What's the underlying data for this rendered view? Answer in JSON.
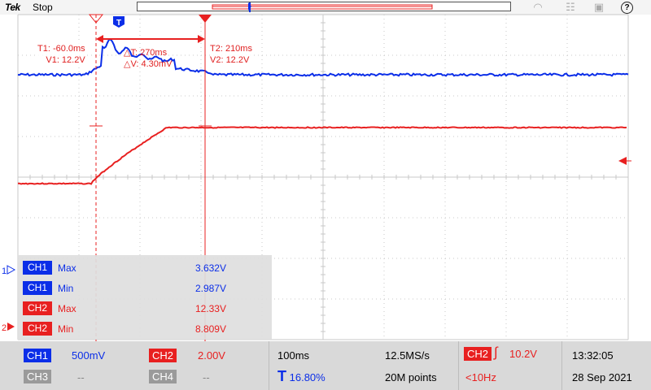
{
  "header": {
    "logo": "Tek",
    "status": "Stop"
  },
  "cursors": {
    "t1": "T1: -60.0ms",
    "v1": "V1: 12.2V",
    "t2": "T2: 210ms",
    "v2": "V2: 12.2V",
    "dt": "△T: 270ms",
    "dv": "△V: 4.30mV"
  },
  "measurements": [
    {
      "channel": "CH1",
      "type": "Max",
      "value": "3.632V",
      "color": "#0b2ee8"
    },
    {
      "channel": "CH1",
      "type": "Min",
      "value": "2.987V",
      "color": "#0b2ee8"
    },
    {
      "channel": "CH2",
      "type": "Max",
      "value": "12.33V",
      "color": "#e82020"
    },
    {
      "channel": "CH2",
      "type": "Min",
      "value": "8.809V",
      "color": "#e82020"
    }
  ],
  "markers": {
    "ch1": "1",
    "ch2": "2",
    "trigger": "T"
  },
  "bottom": {
    "ch1": {
      "label": "CH1",
      "scale": "500mV"
    },
    "ch2": {
      "label": "CH2",
      "scale": "2.00V"
    },
    "ch3": {
      "label": "CH3",
      "scale": "--"
    },
    "ch4": {
      "label": "CH4",
      "scale": "--"
    },
    "timebase": "100ms",
    "trigger_pos": "16.80%",
    "sample_rate": "12.5MS/s",
    "record_length": "20M points",
    "trigger_source": "CH2",
    "trigger_level": "10.2V",
    "trigger_freq": "<10Hz",
    "time": "13:32:05",
    "date": "28 Sep 2021"
  },
  "colors": {
    "ch1": "#0b2ee8",
    "ch2": "#e82020",
    "grid": "#c8c8c8"
  }
}
